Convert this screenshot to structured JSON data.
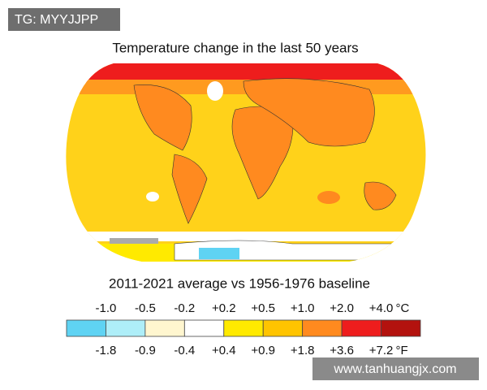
{
  "watermark": "TG: MYYJJPP",
  "title": "Temperature change in the last 50 years",
  "subtitle": "2011-2021 average vs 1956-1976 baseline",
  "legend": {
    "colors": [
      "#5fd3f3",
      "#aeeef8",
      "#fff6cf",
      "#ffffff",
      "#ffea00",
      "#ffc400",
      "#ff8a1f",
      "#ee1d1d",
      "#b3120e"
    ],
    "celsius_labels": [
      "-1.0",
      "-0.5",
      "-0.2",
      "+0.2",
      "+0.5",
      "+1.0",
      "+2.0",
      "+4.0"
    ],
    "celsius_unit": "°C",
    "fahrenheit_labels": [
      "-1.8",
      "-0.9",
      "-0.4",
      "+0.4",
      "+0.9",
      "+1.8",
      "+3.6",
      "+7.2"
    ],
    "fahrenheit_unit": "°F"
  },
  "footer_watermark": "www.tanhuangjx.com"
}
